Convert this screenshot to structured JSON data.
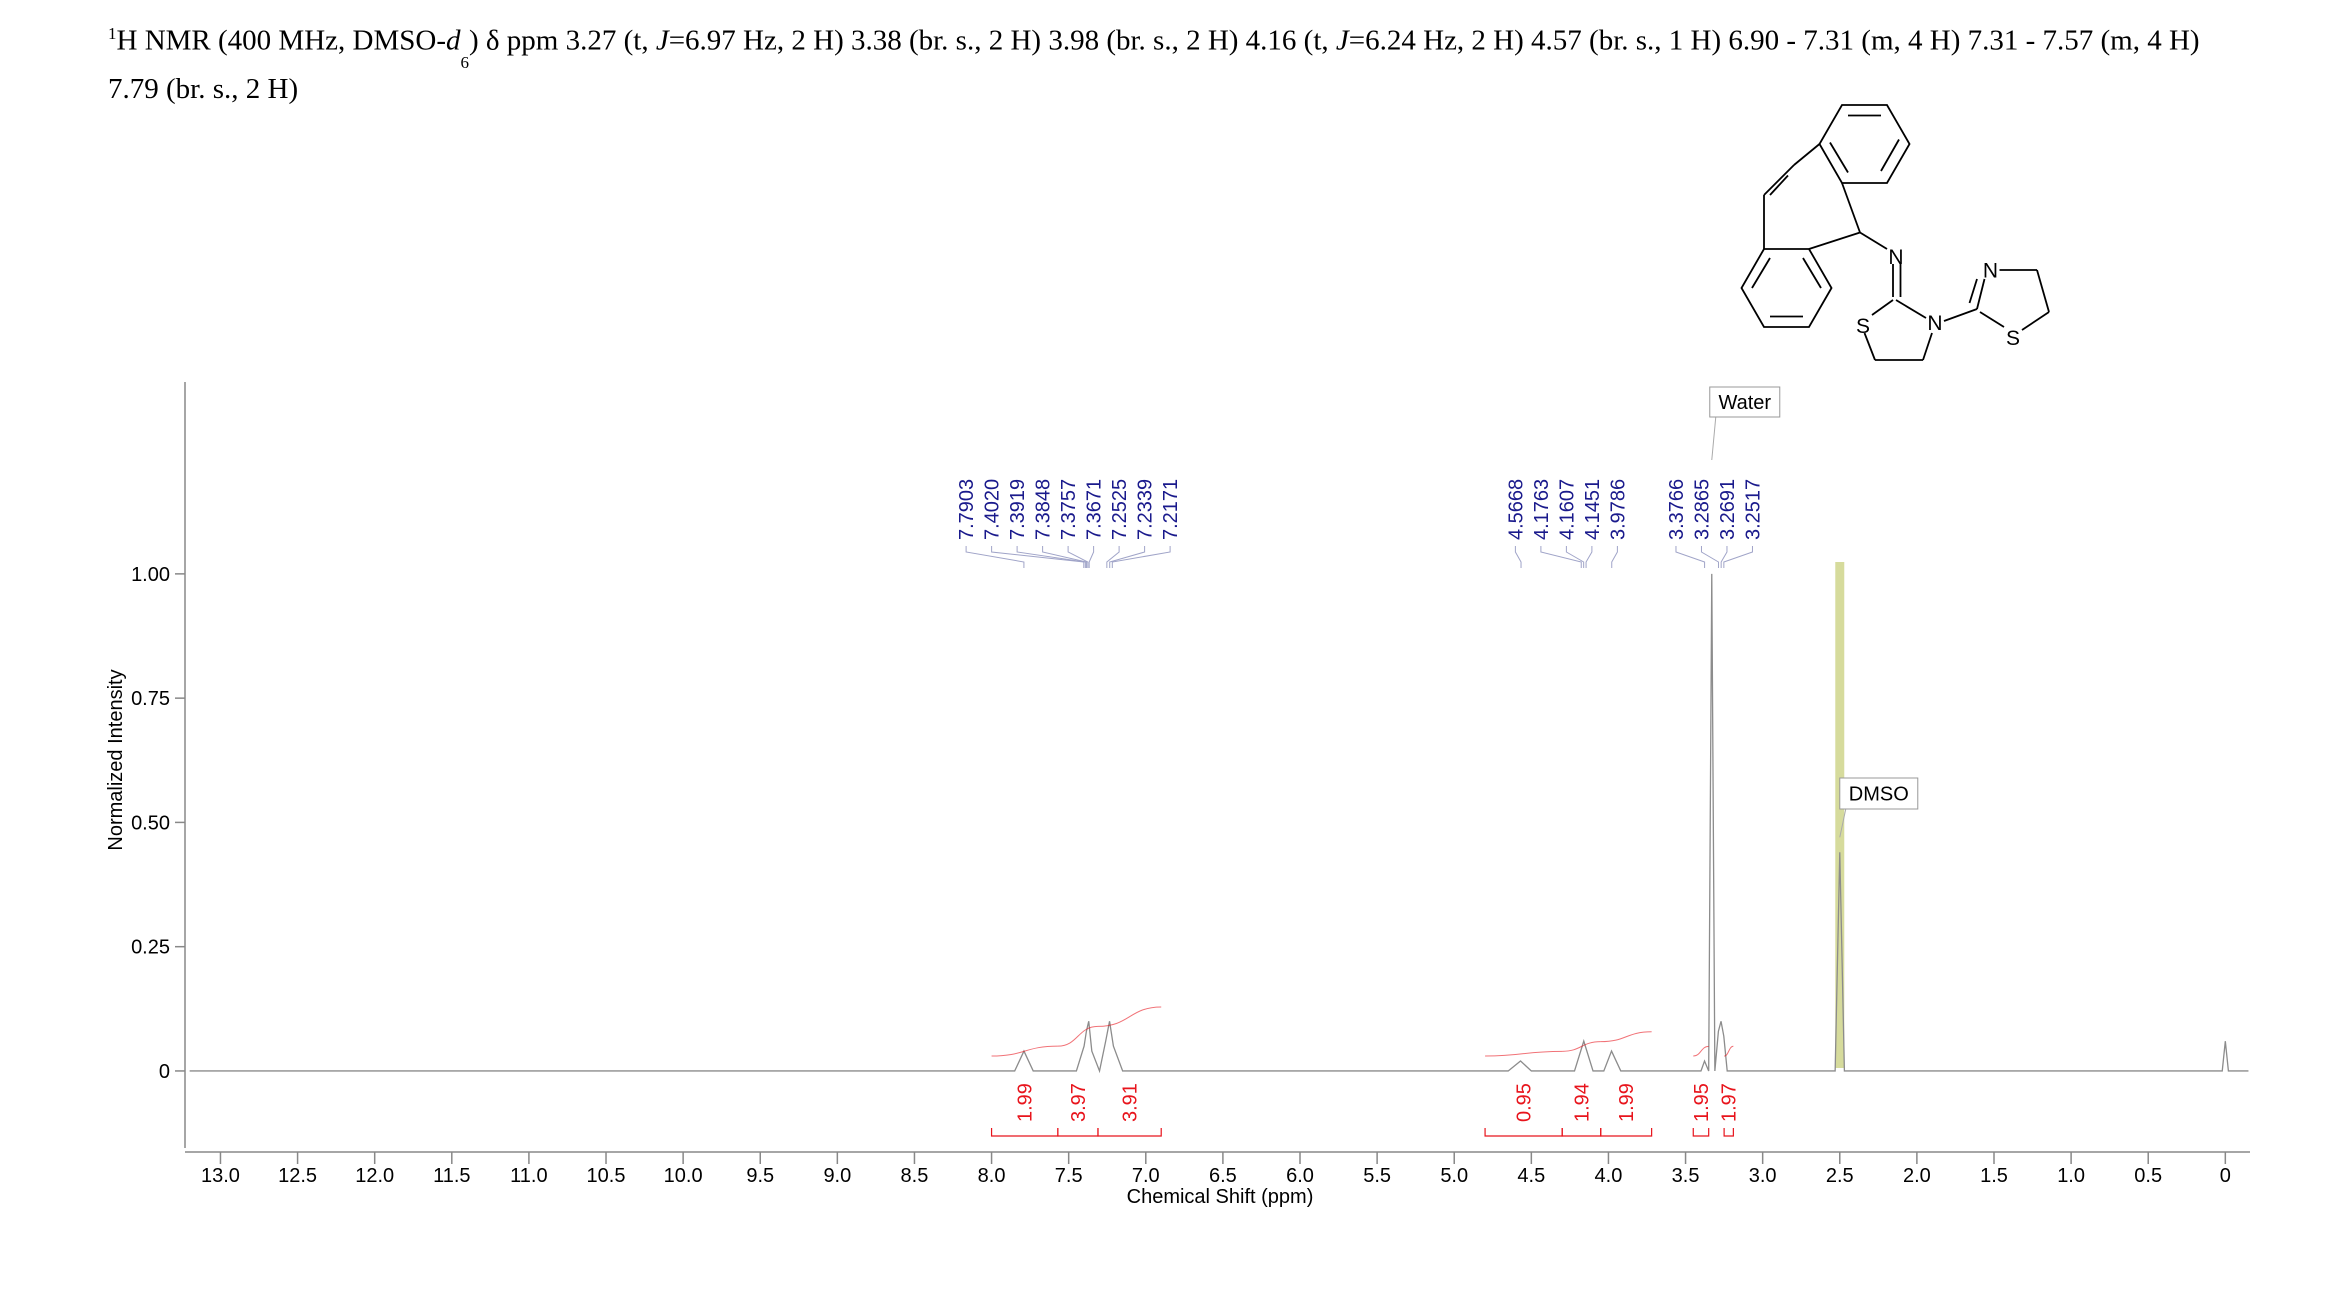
{
  "chart_data": {
    "type": "line",
    "title": [
      "1",
      "H NMR (400 MHz, DMSO-",
      "d",
      "6",
      ") δ ppm 3.27 (t, ",
      "J",
      "=6.97 Hz, 2 H) 3.38 (br. s., 2 H) 3.98 (br. s., 2 H) 4.16 (t,  ",
      "J",
      "=6.24 Hz, 2 H) 4.57 (br. s., 1 H) 6.90 - 7.31 (m, 4 H) 7.31 - 7.57 (m, 4 H) 7.79 (br. s., 2 H)"
    ],
    "x_label": "Chemical Shift (ppm)",
    "y_label": "Normalized Intensity",
    "x": [
      13.2,
      8.0,
      7.85,
      7.79,
      7.73,
      7.45,
      7.4,
      7.385,
      7.37,
      7.35,
      7.3,
      7.26,
      7.235,
      7.21,
      7.15,
      4.65,
      4.57,
      4.5,
      4.22,
      4.16,
      4.1,
      4.03,
      3.98,
      3.92,
      3.4,
      3.377,
      3.35,
      3.33,
      3.31,
      3.287,
      3.27,
      3.252,
      3.23,
      2.53,
      2.5,
      2.47,
      0.02,
      0.0,
      -0.02,
      -0.15
    ],
    "values": [
      0,
      0,
      0,
      0.04,
      0,
      0,
      0.05,
      0.08,
      0.1,
      0.04,
      0,
      0.06,
      0.1,
      0.05,
      0,
      0,
      0.02,
      0,
      0,
      0.06,
      0,
      0,
      0.04,
      0,
      0,
      0.02,
      0,
      1.0,
      0,
      0.08,
      0.1,
      0.07,
      0,
      0,
      0.44,
      0,
      0,
      0.06,
      0,
      0
    ],
    "color": "#8c8c8c",
    "xlim": [
      13.23,
      -0.16
    ],
    "ylim": [
      -0.155,
      1.386
    ],
    "xticks": [
      {
        "value": 13,
        "label": "13.0"
      },
      12.5,
      {
        "value": 12,
        "label": "12.0"
      },
      11.5,
      {
        "value": 11,
        "label": "11.0"
      },
      10.5,
      {
        "value": 10,
        "label": "10.0"
      },
      9.5,
      {
        "value": 9,
        "label": "9.0"
      },
      8.5,
      {
        "value": 8,
        "label": "8.0"
      },
      7.5,
      {
        "value": 7,
        "label": "7.0"
      },
      6.5,
      {
        "value": 6,
        "label": "6.0"
      },
      5.5,
      {
        "value": 5,
        "label": "5.0"
      },
      4.5,
      {
        "value": 4,
        "label": "4.0"
      },
      3.5,
      {
        "value": 3,
        "label": "3.0"
      },
      2.5,
      {
        "value": 2,
        "label": "2.0"
      },
      1.5,
      {
        "value": 1,
        "label": "1.0"
      },
      0.5,
      0
    ],
    "yticks": [
      {
        "value": 1,
        "label": "1.00"
      },
      0.75,
      {
        "value": 0.5,
        "label": "0.50"
      },
      0.25,
      0
    ],
    "peak_labels": [
      [
        7.7903,
        {
          "value": 7.402,
          "label": "7.4020"
        },
        7.3919,
        7.3848,
        7.3757,
        7.3671,
        7.2525,
        7.2339,
        7.2171
      ],
      [
        4.5668,
        4.1763,
        4.1607,
        4.1451,
        3.9786
      ],
      [
        3.3766,
        3.2865,
        3.2691,
        3.2517
      ]
    ],
    "peak_label_color": "#1a1a8c",
    "integrals": [
      {
        "value": 1.99,
        "range": [
          8.0,
          7.57
        ]
      },
      {
        "value": 3.97,
        "range": [
          7.57,
          7.31
        ]
      },
      {
        "value": 3.91,
        "range": [
          7.31,
          6.9
        ]
      },
      {
        "value": 0.95,
        "range": [
          4.8,
          4.3
        ]
      },
      {
        "value": 1.94,
        "range": [
          4.3,
          4.05
        ]
      },
      {
        "value": 1.99,
        "range": [
          4.05,
          3.72
        ]
      },
      {
        "value": 1.95,
        "range": [
          3.45,
          3.35
        ]
      },
      {
        "value": 1.97,
        "range": [
          3.25,
          3.19
        ]
      }
    ],
    "integral_color": "#e8141c",
    "annotations": [
      {
        "text": "Water",
        "x": 3.33
      },
      {
        "text": "DMSO",
        "x": 2.5
      }
    ]
  },
  "structure": {
    "atoms": [
      "N",
      "S",
      "N",
      "N",
      "S"
    ]
  }
}
